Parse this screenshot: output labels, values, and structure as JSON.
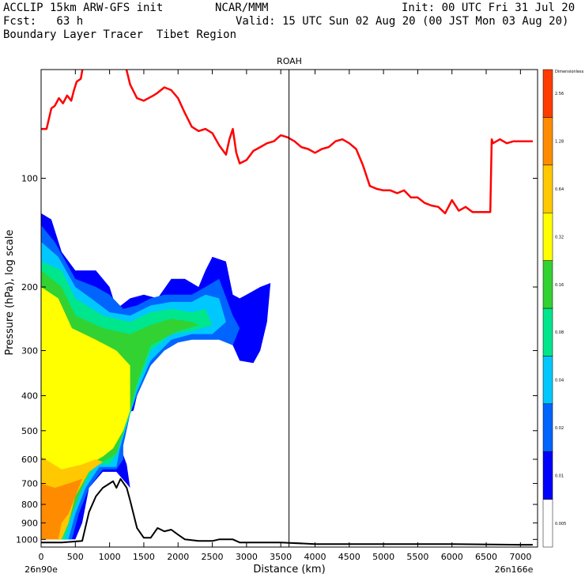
{
  "header": {
    "line1_left": "ACCLIP 15km ARW-GFS init",
    "line1_center": "NCAR/MMM",
    "line1_right": "Init: 00 UTC Fri 31 Jul 20",
    "line2_left": "Fcst:   63 h",
    "line2_right": "Valid: 15 UTC Sun 02 Aug 20 (00 JST Mon 03 Aug 20)",
    "line3_left": "Boundary Layer Tracer  Tibet Region"
  },
  "chart_data": {
    "type": "heatmap",
    "title": "ROAH",
    "xlabel": "Distance (km)",
    "ylabel": "Pressure (hPa), log scale",
    "xlim": [
      0,
      7250
    ],
    "ylim": [
      1050,
      50
    ],
    "x_ticks": [
      0,
      500,
      1000,
      1500,
      2000,
      2500,
      3000,
      3500,
      4000,
      4500,
      5000,
      5500,
      6000,
      6500,
      7000
    ],
    "y_ticks": [
      100,
      200,
      300,
      400,
      500,
      600,
      700,
      800,
      900,
      1000
    ],
    "x_left_label": "26n90e",
    "x_right_label": "26n166e",
    "marker_line_x": 3620,
    "colorbar": {
      "title": "Dimensionless",
      "levels": [
        "0.005",
        "0.01",
        "0.02",
        "0.04",
        "0.08",
        "0.16",
        "0.32",
        "0.64",
        "1.28",
        "2.56"
      ],
      "colors": [
        "#ffffff",
        "#0000ff",
        "#0064ff",
        "#00c8ff",
        "#00e68c",
        "#32d232",
        "#ffff00",
        "#ffc800",
        "#ff8c00",
        "#ff3c00"
      ]
    },
    "series": [
      {
        "name": "tropopause",
        "color": "#ff0000",
        "points": [
          [
            0,
            73
          ],
          [
            80,
            73
          ],
          [
            150,
            64
          ],
          [
            200,
            63
          ],
          [
            260,
            60
          ],
          [
            320,
            62
          ],
          [
            380,
            59
          ],
          [
            440,
            61
          ],
          [
            480,
            57
          ],
          [
            520,
            54
          ],
          [
            580,
            53
          ],
          [
            620,
            48
          ],
          [
            680,
            47
          ],
          [
            760,
            47
          ],
          [
            860,
            43
          ],
          [
            1000,
            42
          ],
          [
            1140,
            40
          ],
          [
            1200,
            46
          ],
          [
            1300,
            55
          ],
          [
            1400,
            60
          ],
          [
            1500,
            61
          ],
          [
            1640,
            59
          ],
          [
            1700,
            58
          ],
          [
            1800,
            56
          ],
          [
            1900,
            57
          ],
          [
            2000,
            60
          ],
          [
            2100,
            66
          ],
          [
            2200,
            72
          ],
          [
            2300,
            74
          ],
          [
            2400,
            73
          ],
          [
            2500,
            75
          ],
          [
            2600,
            81
          ],
          [
            2700,
            86
          ],
          [
            2750,
            78
          ],
          [
            2800,
            73
          ],
          [
            2850,
            85
          ],
          [
            2900,
            91
          ],
          [
            3000,
            89
          ],
          [
            3100,
            84
          ],
          [
            3200,
            82
          ],
          [
            3300,
            80
          ],
          [
            3400,
            79
          ],
          [
            3500,
            76
          ],
          [
            3600,
            77
          ],
          [
            3700,
            79
          ],
          [
            3800,
            82
          ],
          [
            3900,
            83
          ],
          [
            4000,
            85
          ],
          [
            4100,
            83
          ],
          [
            4200,
            82
          ],
          [
            4300,
            79
          ],
          [
            4400,
            78
          ],
          [
            4500,
            80
          ],
          [
            4600,
            83
          ],
          [
            4700,
            92
          ],
          [
            4800,
            105
          ],
          [
            4900,
            107
          ],
          [
            5000,
            108
          ],
          [
            5100,
            108
          ],
          [
            5200,
            110
          ],
          [
            5300,
            108
          ],
          [
            5400,
            113
          ],
          [
            5500,
            113
          ],
          [
            5600,
            117
          ],
          [
            5700,
            119
          ],
          [
            5800,
            120
          ],
          [
            5900,
            125
          ],
          [
            6000,
            115
          ],
          [
            6100,
            123
          ],
          [
            6200,
            120
          ],
          [
            6300,
            124
          ],
          [
            6400,
            124
          ],
          [
            6500,
            124
          ],
          [
            6560,
            124
          ],
          [
            6580,
            78
          ],
          [
            6600,
            80
          ],
          [
            6700,
            78
          ],
          [
            6800,
            80
          ],
          [
            6900,
            79
          ],
          [
            7000,
            79
          ],
          [
            7180,
            79
          ]
        ]
      },
      {
        "name": "surface",
        "color": "#000000",
        "points": [
          [
            0,
            1020
          ],
          [
            300,
            1020
          ],
          [
            600,
            1010
          ],
          [
            700,
            840
          ],
          [
            800,
            760
          ],
          [
            900,
            720
          ],
          [
            1000,
            700
          ],
          [
            1050,
            690
          ],
          [
            1100,
            720
          ],
          [
            1160,
            680
          ],
          [
            1250,
            720
          ],
          [
            1300,
            780
          ],
          [
            1400,
            930
          ],
          [
            1500,
            990
          ],
          [
            1600,
            990
          ],
          [
            1700,
            930
          ],
          [
            1800,
            950
          ],
          [
            1900,
            940
          ],
          [
            2000,
            970
          ],
          [
            2100,
            1000
          ],
          [
            2300,
            1010
          ],
          [
            2500,
            1010
          ],
          [
            2600,
            1000
          ],
          [
            2700,
            1000
          ],
          [
            2800,
            1000
          ],
          [
            2900,
            1020
          ],
          [
            3000,
            1020
          ],
          [
            3500,
            1020
          ],
          [
            4000,
            1030
          ],
          [
            5000,
            1030
          ],
          [
            6000,
            1030
          ],
          [
            7000,
            1035
          ],
          [
            7180,
            1035
          ]
        ]
      }
    ],
    "tracer_regions": [
      {
        "level": "0.01",
        "points": [
          [
            0,
            125
          ],
          [
            150,
            130
          ],
          [
            300,
            160
          ],
          [
            500,
            180
          ],
          [
            800,
            180
          ],
          [
            1000,
            200
          ],
          [
            1100,
            230
          ],
          [
            1300,
            215
          ],
          [
            1500,
            210
          ],
          [
            1700,
            215
          ],
          [
            1900,
            190
          ],
          [
            2100,
            190
          ],
          [
            2300,
            200
          ],
          [
            2400,
            180
          ],
          [
            2500,
            165
          ],
          [
            2700,
            170
          ],
          [
            2800,
            210
          ],
          [
            2900,
            215
          ],
          [
            3000,
            210
          ],
          [
            3200,
            200
          ],
          [
            3350,
            195
          ],
          [
            3300,
            250
          ],
          [
            3200,
            300
          ],
          [
            3100,
            325
          ],
          [
            2900,
            320
          ],
          [
            2800,
            290
          ],
          [
            2700,
            280
          ],
          [
            2600,
            275
          ],
          [
            2400,
            275
          ],
          [
            2200,
            275
          ],
          [
            2000,
            280
          ],
          [
            1800,
            295
          ],
          [
            1600,
            320
          ],
          [
            1400,
            400
          ],
          [
            1350,
            440
          ],
          [
            1200,
            450
          ],
          [
            1150,
            550
          ],
          [
            1250,
            620
          ],
          [
            1300,
            720
          ],
          [
            1100,
            650
          ],
          [
            900,
            650
          ],
          [
            700,
            720
          ],
          [
            600,
            900
          ],
          [
            500,
            1000
          ],
          [
            100,
            1000
          ],
          [
            0,
            1000
          ]
        ]
      },
      {
        "level": "0.02",
        "points": [
          [
            0,
            135
          ],
          [
            200,
            150
          ],
          [
            500,
            190
          ],
          [
            800,
            200
          ],
          [
            1000,
            210
          ],
          [
            1200,
            230
          ],
          [
            1400,
            225
          ],
          [
            1600,
            215
          ],
          [
            1800,
            210
          ],
          [
            2000,
            210
          ],
          [
            2200,
            210
          ],
          [
            2400,
            200
          ],
          [
            2600,
            190
          ],
          [
            2800,
            240
          ],
          [
            2900,
            260
          ],
          [
            2800,
            290
          ],
          [
            2600,
            280
          ],
          [
            2400,
            280
          ],
          [
            2200,
            280
          ],
          [
            2000,
            285
          ],
          [
            1800,
            300
          ],
          [
            1600,
            330
          ],
          [
            1400,
            400
          ],
          [
            1300,
            450
          ],
          [
            1200,
            550
          ],
          [
            1200,
            600
          ],
          [
            1100,
            640
          ],
          [
            900,
            640
          ],
          [
            700,
            720
          ],
          [
            550,
            850
          ],
          [
            450,
            1000
          ],
          [
            0,
            1000
          ]
        ]
      },
      {
        "level": "0.04",
        "points": [
          [
            0,
            150
          ],
          [
            250,
            165
          ],
          [
            500,
            200
          ],
          [
            800,
            220
          ],
          [
            1000,
            235
          ],
          [
            1300,
            240
          ],
          [
            1600,
            225
          ],
          [
            1900,
            220
          ],
          [
            2200,
            220
          ],
          [
            2400,
            210
          ],
          [
            2600,
            215
          ],
          [
            2700,
            250
          ],
          [
            2500,
            270
          ],
          [
            2200,
            270
          ],
          [
            1900,
            280
          ],
          [
            1600,
            320
          ],
          [
            1400,
            390
          ],
          [
            1300,
            450
          ],
          [
            1150,
            560
          ],
          [
            1100,
            630
          ],
          [
            850,
            630
          ],
          [
            650,
            720
          ],
          [
            500,
            850
          ],
          [
            400,
            1000
          ],
          [
            0,
            1000
          ]
        ]
      },
      {
        "level": "0.08",
        "points": [
          [
            0,
            170
          ],
          [
            300,
            180
          ],
          [
            500,
            215
          ],
          [
            900,
            240
          ],
          [
            1300,
            250
          ],
          [
            1600,
            235
          ],
          [
            1900,
            230
          ],
          [
            2200,
            235
          ],
          [
            2400,
            230
          ],
          [
            2500,
            255
          ],
          [
            2200,
            265
          ],
          [
            1900,
            270
          ],
          [
            1600,
            300
          ],
          [
            1400,
            380
          ],
          [
            1300,
            450
          ],
          [
            1100,
            580
          ],
          [
            1000,
            620
          ],
          [
            800,
            620
          ],
          [
            600,
            720
          ],
          [
            450,
            850
          ],
          [
            350,
            1000
          ],
          [
            0,
            1000
          ]
        ]
      },
      {
        "level": "0.16",
        "points": [
          [
            0,
            180
          ],
          [
            300,
            200
          ],
          [
            500,
            240
          ],
          [
            900,
            260
          ],
          [
            1300,
            270
          ],
          [
            1600,
            255
          ],
          [
            1900,
            245
          ],
          [
            2200,
            250
          ],
          [
            2300,
            255
          ],
          [
            2000,
            265
          ],
          [
            1600,
            290
          ],
          [
            1400,
            370
          ],
          [
            1300,
            440
          ],
          [
            1100,
            580
          ],
          [
            900,
            610
          ],
          [
            700,
            650
          ],
          [
            550,
            760
          ],
          [
            400,
            900
          ],
          [
            300,
            1000
          ],
          [
            0,
            1000
          ]
        ]
      },
      {
        "level": "0.32",
        "points": [
          [
            0,
            200
          ],
          [
            250,
            215
          ],
          [
            450,
            260
          ],
          [
            800,
            280
          ],
          [
            1100,
            300
          ],
          [
            1300,
            330
          ],
          [
            1300,
            440
          ],
          [
            1200,
            500
          ],
          [
            1050,
            560
          ],
          [
            900,
            590
          ],
          [
            700,
            620
          ],
          [
            500,
            700
          ],
          [
            350,
            850
          ],
          [
            250,
            1000
          ],
          [
            0,
            1000
          ]
        ]
      },
      {
        "level": "0.64",
        "points": [
          [
            0,
            590
          ],
          [
            300,
            640
          ],
          [
            600,
            620
          ],
          [
            800,
            600
          ],
          [
            900,
            610
          ],
          [
            700,
            650
          ],
          [
            500,
            760
          ],
          [
            400,
            900
          ],
          [
            300,
            1000
          ],
          [
            0,
            1000
          ]
        ]
      },
      {
        "level": "1.28",
        "points": [
          [
            0,
            700
          ],
          [
            200,
            720
          ],
          [
            400,
            700
          ],
          [
            600,
            680
          ],
          [
            500,
            760
          ],
          [
            400,
            850
          ],
          [
            300,
            900
          ],
          [
            250,
            1000
          ],
          [
            0,
            1000
          ]
        ]
      }
    ]
  }
}
